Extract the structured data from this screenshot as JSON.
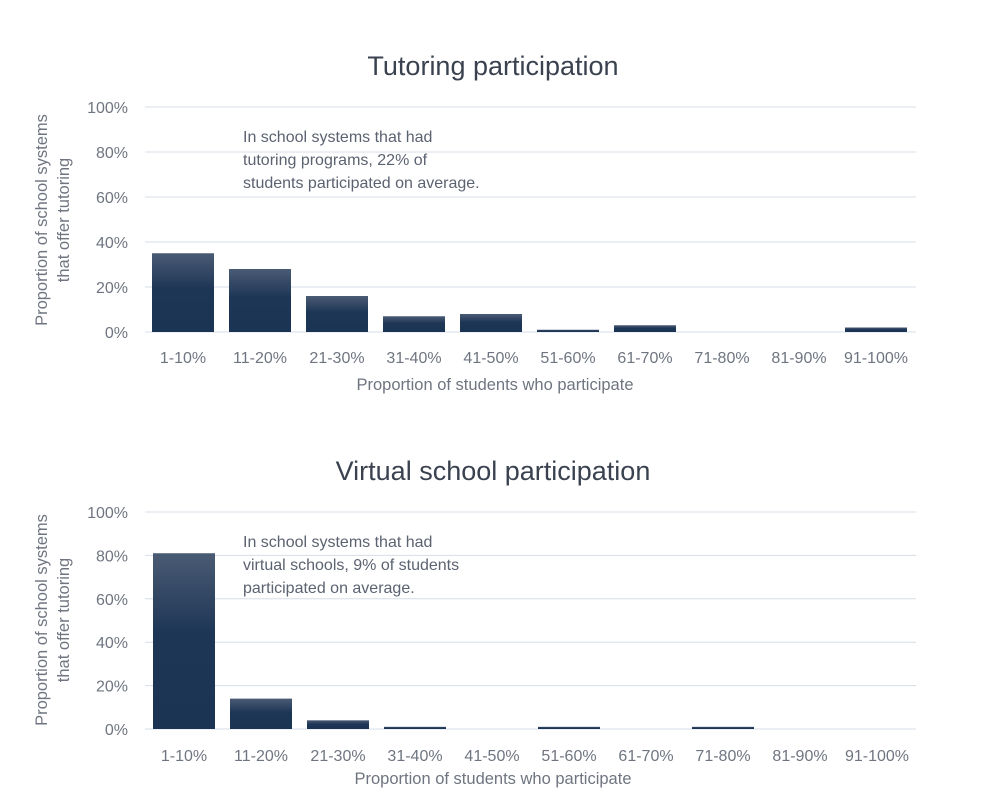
{
  "chart_data": [
    {
      "type": "bar",
      "title": "Tutoring participation",
      "xlabel": "Proportion of students who participate",
      "ylabel_line1": "Proportion of school systems",
      "ylabel_line2": "that offer tutoring",
      "categories": [
        "1-10%",
        "11-20%",
        "21-30%",
        "31-40%",
        "41-50%",
        "51-60%",
        "61-70%",
        "71-80%",
        "81-90%",
        "91-100%"
      ],
      "values": [
        35,
        28,
        16,
        7,
        8,
        1,
        3,
        0,
        0,
        2
      ],
      "ylim": [
        0,
        100
      ],
      "yticks": [
        "0%",
        "20%",
        "40%",
        "60%",
        "80%",
        "100%"
      ],
      "annotation_lines": [
        "In school systems that had",
        "tutoring programs, 22% of",
        "students participated on average."
      ],
      "grid": true,
      "bar_color": "#1b3454"
    },
    {
      "type": "bar",
      "title": "Virtual school participation",
      "xlabel": "Proportion of students who participate",
      "ylabel_line1": "Proportion of school systems",
      "ylabel_line2": "that offer tutoring",
      "categories": [
        "1-10%",
        "11-20%",
        "21-30%",
        "31-40%",
        "41-50%",
        "51-60%",
        "61-70%",
        "71-80%",
        "81-90%",
        "91-100%"
      ],
      "values": [
        81,
        14,
        4,
        1,
        0,
        1,
        0,
        1,
        0,
        0
      ],
      "ylim": [
        0,
        100
      ],
      "yticks": [
        "0%",
        "20%",
        "40%",
        "60%",
        "80%",
        "100%"
      ],
      "annotation_lines": [
        "In school systems that had",
        "virtual schools, 9% of students",
        "participated on average."
      ],
      "grid": true,
      "bar_color": "#1b3454"
    }
  ]
}
